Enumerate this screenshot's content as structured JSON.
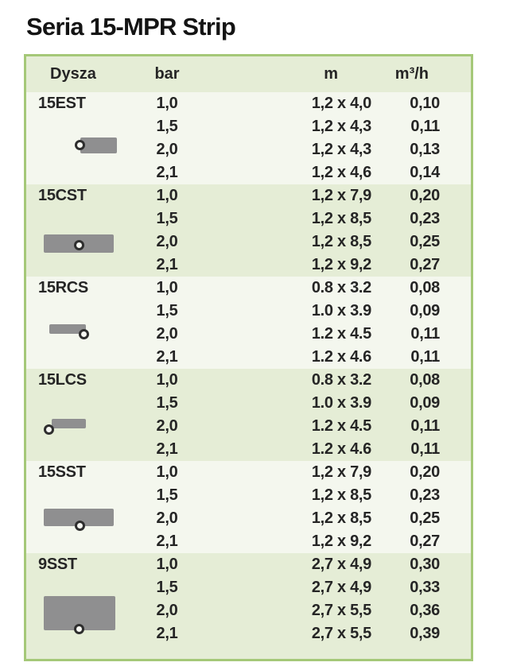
{
  "title": "Seria 15-MPR Strip",
  "colors": {
    "table_border": "#a5c878",
    "band_green": "#e5edd6",
    "band_light": "#f4f7ee",
    "nozzle_gray": "#8f8f90",
    "text": "#252525"
  },
  "table": {
    "headers": {
      "dysza": "Dysza",
      "bar": "bar",
      "m": "m",
      "flow": "m³/h"
    },
    "groups": [
      {
        "name": "15EST",
        "icon": "end-strip-nozzle-icon",
        "rows": [
          {
            "bar": "1,0",
            "m": "1,2 x 4,0",
            "flow": "0,10"
          },
          {
            "bar": "1,5",
            "m": "1,2 x 4,3",
            "flow": "0,11"
          },
          {
            "bar": "2,0",
            "m": "1,2 x 4,3",
            "flow": "0,13"
          },
          {
            "bar": "2,1",
            "m": "1,2 x 4,6",
            "flow": "0,14"
          }
        ]
      },
      {
        "name": "15CST",
        "icon": "center-strip-nozzle-icon",
        "rows": [
          {
            "bar": "1,0",
            "m": "1,2 x 7,9",
            "flow": "0,20"
          },
          {
            "bar": "1,5",
            "m": "1,2 x 8,5",
            "flow": "0,23"
          },
          {
            "bar": "2,0",
            "m": "1,2 x 8,5",
            "flow": "0,25"
          },
          {
            "bar": "2,1",
            "m": "1,2 x 9,2",
            "flow": "0,27"
          }
        ]
      },
      {
        "name": "15RCS",
        "icon": "right-corner-strip-nozzle-icon",
        "rows": [
          {
            "bar": "1,0",
            "m": "0.8 x 3.2",
            "flow": "0,08"
          },
          {
            "bar": "1,5",
            "m": "1.0 x 3.9",
            "flow": "0,09"
          },
          {
            "bar": "2,0",
            "m": "1.2 x 4.5",
            "flow": "0,11"
          },
          {
            "bar": "2,1",
            "m": "1.2 x 4.6",
            "flow": "0,11"
          }
        ]
      },
      {
        "name": "15LCS",
        "icon": "left-corner-strip-nozzle-icon",
        "rows": [
          {
            "bar": "1,0",
            "m": "0.8 x 3.2",
            "flow": "0,08"
          },
          {
            "bar": "1,5",
            "m": "1.0 x 3.9",
            "flow": "0,09"
          },
          {
            "bar": "2,0",
            "m": "1.2 x 4.5",
            "flow": "0,11"
          },
          {
            "bar": "2,1",
            "m": "1.2 x 4.6",
            "flow": "0,11"
          }
        ]
      },
      {
        "name": "15SST",
        "icon": "side-strip-nozzle-icon",
        "rows": [
          {
            "bar": "1,0",
            "m": "1,2 x 7,9",
            "flow": "0,20"
          },
          {
            "bar": "1,5",
            "m": "1,2 x 8,5",
            "flow": "0,23"
          },
          {
            "bar": "2,0",
            "m": "1,2 x 8,5",
            "flow": "0,25"
          },
          {
            "bar": "2,1",
            "m": "1,2 x 9,2",
            "flow": "0,27"
          }
        ]
      },
      {
        "name": "9SST",
        "icon": "wide-side-strip-nozzle-icon",
        "rows": [
          {
            "bar": "1,0",
            "m": "2,7 x 4,9",
            "flow": "0,30"
          },
          {
            "bar": "1,5",
            "m": "2,7 x 4,9",
            "flow": "0,33"
          },
          {
            "bar": "2,0",
            "m": "2,7 x 5,5",
            "flow": "0,36"
          },
          {
            "bar": "2,1",
            "m": "2,7 x 5,5",
            "flow": "0,39"
          }
        ]
      }
    ]
  }
}
